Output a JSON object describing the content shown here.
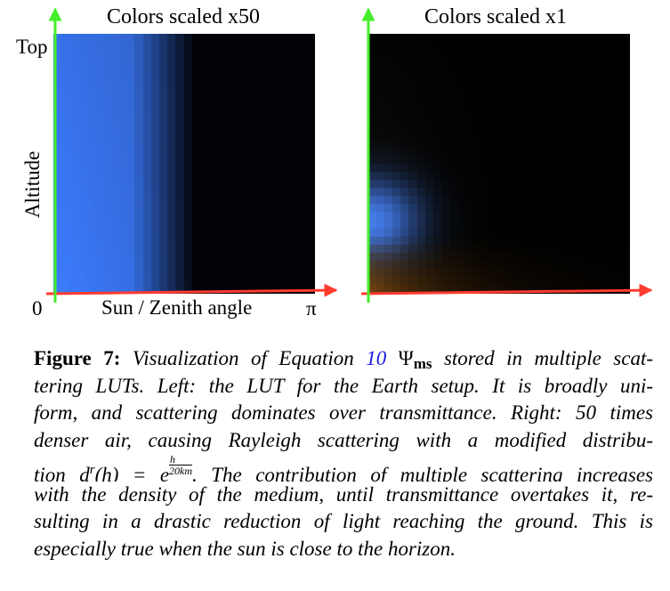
{
  "figure": {
    "left_panel": {
      "title": "Colors scaled x50",
      "y_label": "Altitude",
      "y_top_label": "Top",
      "x_label": "Sun / Zenith angle",
      "x_start_label": "0",
      "x_end_label": "π"
    },
    "right_panel": {
      "title": "Colors scaled x1"
    },
    "colors": {
      "x_axis_arrow": "#ff3b30",
      "y_axis_arrow": "#44ee2a",
      "scatter_blue": "#3c7cff",
      "background": "#000000"
    }
  },
  "caption": {
    "figure_label": "Figure 7:",
    "line1_text": "Visualization of Equation",
    "equation_ref": "10",
    "psi_symbol": "Ψ",
    "psi_subscript": "ms",
    "line1_rest": "stored in multiple scat-",
    "line2": "tering LUTs. Left: the LUT for the Earth setup. It is broadly uni-",
    "line3": "form, and scattering dominates over transmittance. Right: 50 times",
    "line4": "denser air, causing Rayleigh scattering with a modified distribu-",
    "line5_text": "tion",
    "formula_lhs": "d",
    "formula_sup": "r",
    "formula_arg": "(h) =",
    "formula_base": "e",
    "formula_frac_num": "h",
    "formula_frac_den": "20km",
    "line5_rest": ". The contribution of multiple scattering increases",
    "line6": "with the density of the medium, until transmittance overtakes it, re-",
    "line7": "sulting in a drastic reduction of light reaching the ground. This is",
    "line8": "especially true when the sun is close to the horizon."
  }
}
